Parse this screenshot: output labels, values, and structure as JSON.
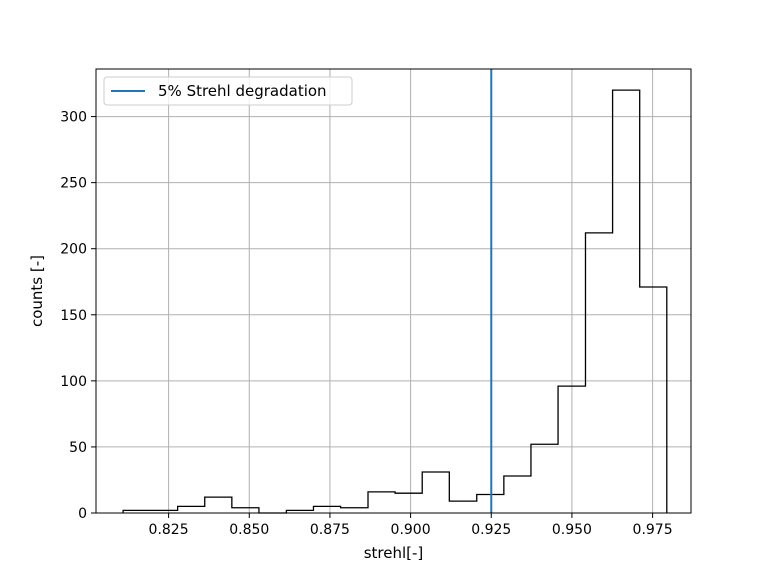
{
  "chart_data": {
    "type": "histogram",
    "xlabel": "strehl[-]",
    "ylabel": "counts [-]",
    "xlim": [
      0.8025,
      0.9869
    ],
    "ylim": [
      0,
      336
    ],
    "grid": true,
    "xticks": [
      0.825,
      0.85,
      0.875,
      0.9,
      0.925,
      0.95,
      0.975
    ],
    "xtick_labels": [
      "0.825",
      "0.850",
      "0.875",
      "0.900",
      "0.925",
      "0.950",
      "0.975"
    ],
    "yticks": [
      0,
      50,
      100,
      150,
      200,
      250,
      300
    ],
    "ytick_labels": [
      "0",
      "50",
      "100",
      "150",
      "200",
      "250",
      "300"
    ],
    "bin_edges": [
      0.8109,
      0.8193,
      0.8278,
      0.8362,
      0.8446,
      0.853,
      0.8615,
      0.8699,
      0.8783,
      0.8868,
      0.8952,
      0.9036,
      0.912,
      0.9205,
      0.9289,
      0.9373,
      0.9457,
      0.9542,
      0.9626,
      0.971,
      0.9794
    ],
    "counts": [
      2,
      2,
      5,
      12,
      4,
      0,
      2,
      5,
      4,
      16,
      15,
      31,
      9,
      14,
      28,
      52,
      96,
      212,
      320,
      171
    ],
    "vline": {
      "x": 0.925,
      "label": "5% Strehl degradation",
      "color": "#1f77b4"
    },
    "legend": {
      "placement": "upper-left"
    },
    "histogram_color": "#000000",
    "grid_color": "#b0b0b0"
  }
}
